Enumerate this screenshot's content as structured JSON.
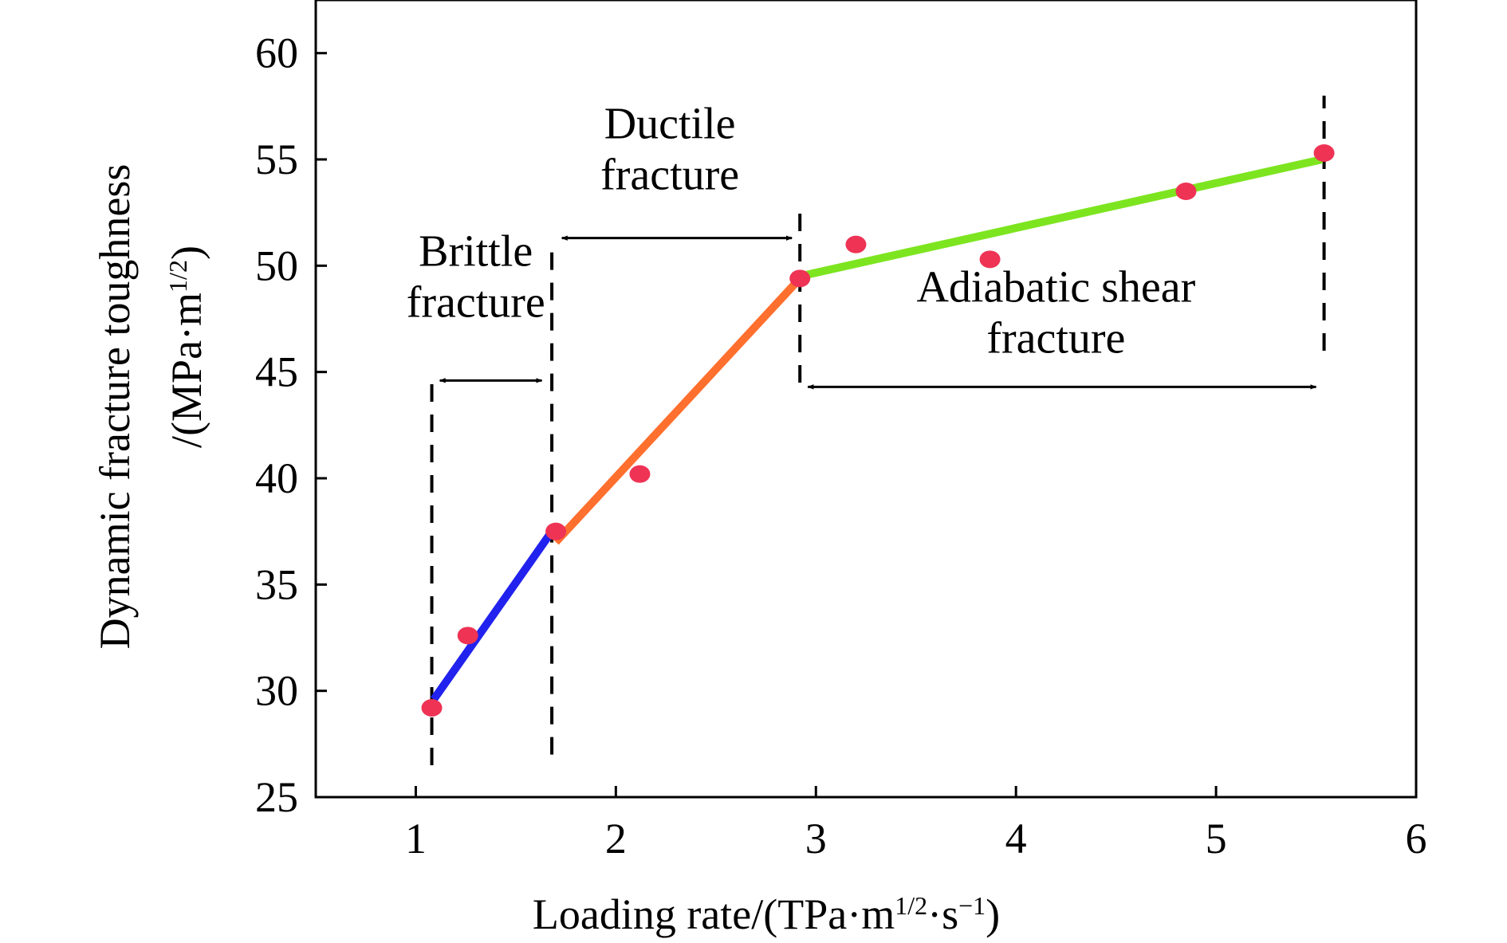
{
  "chart_data": {
    "type": "scatter",
    "xlabel": {
      "parts": [
        {
          "text": "Loading rate/(TPa·m",
          "sup": false
        },
        {
          "text": "1/2",
          "sup": true
        },
        {
          "text": "·s",
          "sup": false
        },
        {
          "text": "−1",
          "sup": true
        },
        {
          "text": ")",
          "sup": false
        }
      ]
    },
    "ylabel": {
      "line1": "Dynamic fracture toughness",
      "line2": {
        "parts": [
          {
            "text": "/(MPa·m",
            "sup": false
          },
          {
            "text": "1/2",
            "sup": true
          },
          {
            "text": ")",
            "sup": false
          }
        ]
      }
    },
    "xlim": [
      0.5,
      6
    ],
    "ylim": [
      25,
      62.5
    ],
    "xticks": [
      1,
      2,
      3,
      4,
      5,
      6
    ],
    "yticks": [
      25,
      30,
      35,
      40,
      45,
      50,
      55,
      60
    ],
    "grid": false,
    "legend": "none",
    "points": {
      "color": "#ee3355",
      "x": [
        1.08,
        1.26,
        1.7,
        2.12,
        2.92,
        3.2,
        3.87,
        4.85,
        5.54
      ],
      "y": [
        29.2,
        32.6,
        37.5,
        40.2,
        49.4,
        51.0,
        50.3,
        53.5,
        55.3
      ]
    },
    "fit_lines": [
      {
        "x": [
          1.09,
          1.68
        ],
        "y": [
          29.6,
          37.5
        ],
        "color": "#2222ee"
      },
      {
        "x": [
          1.7,
          2.92
        ],
        "y": [
          37.0,
          49.4
        ],
        "color": "#ff6f2e"
      },
      {
        "x": [
          2.92,
          5.53
        ],
        "y": [
          49.5,
          55.0
        ],
        "color": "#7de51f"
      }
    ],
    "boundaries": [
      {
        "x": 1.08,
        "y": [
          26.5,
          45.0
        ]
      },
      {
        "x": 1.68,
        "y": [
          27.0,
          51.0
        ]
      },
      {
        "x": 2.92,
        "y": [
          44.5,
          52.5
        ]
      },
      {
        "x": 5.54,
        "y": [
          46.0,
          58.0
        ]
      }
    ],
    "arrows": [
      {
        "x": [
          1.12,
          1.63
        ],
        "y": 44.6
      },
      {
        "x": 1.73,
        "x2": 2.88,
        "y": 51.3
      },
      {
        "x": [
          2.96,
          5.5
        ],
        "y": 44.3
      }
    ],
    "annotations": [
      {
        "lines": [
          "Brittle",
          "fracture"
        ],
        "x": 1.3,
        "y": 50.0
      },
      {
        "lines": [
          "Ductile",
          "fracture"
        ],
        "x": 2.27,
        "y": 56.0
      },
      {
        "lines": [
          "Adiabatic shear",
          "fracture"
        ],
        "x": 4.2,
        "y": 48.3
      }
    ]
  }
}
